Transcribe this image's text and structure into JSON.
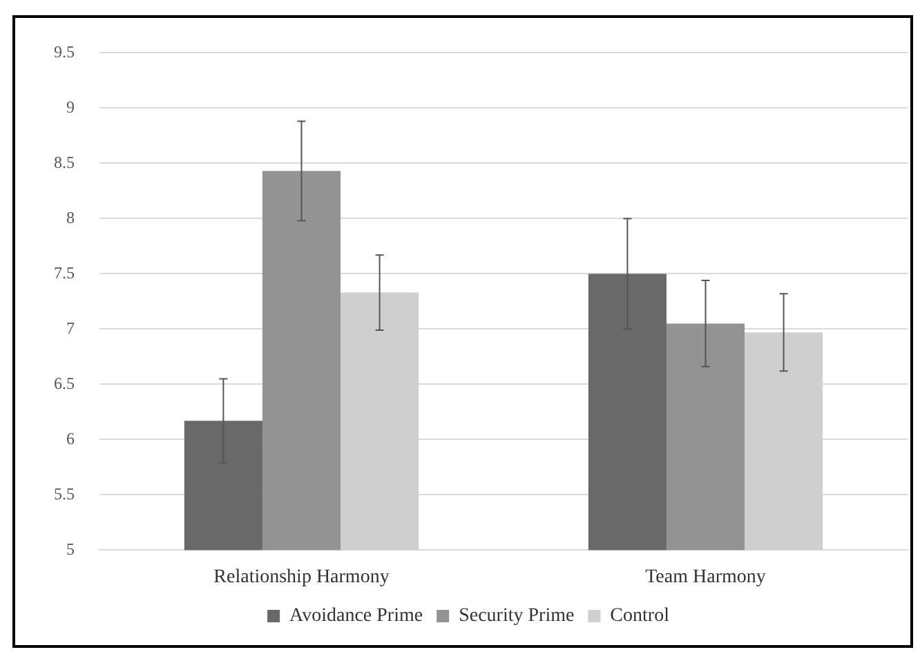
{
  "chart_data": {
    "type": "bar",
    "categories": [
      "Relationship Harmony",
      "Team Harmony"
    ],
    "series": [
      {
        "name": "Avoidance Prime",
        "color": "#696969",
        "values": [
          6.17,
          7.5
        ],
        "errors": [
          0.38,
          0.5
        ]
      },
      {
        "name": "Security Prime",
        "color": "#939393",
        "values": [
          8.43,
          7.05
        ],
        "errors": [
          0.45,
          0.39
        ]
      },
      {
        "name": "Control",
        "color": "#cfcfcf",
        "values": [
          7.33,
          6.97
        ],
        "errors": [
          0.34,
          0.35
        ]
      }
    ],
    "ylim": [
      5,
      9.5
    ],
    "yticks": [
      5,
      5.5,
      6,
      6.5,
      7,
      7.5,
      8,
      8.5,
      9,
      9.5
    ],
    "grid": "y",
    "legend": "bottom"
  }
}
